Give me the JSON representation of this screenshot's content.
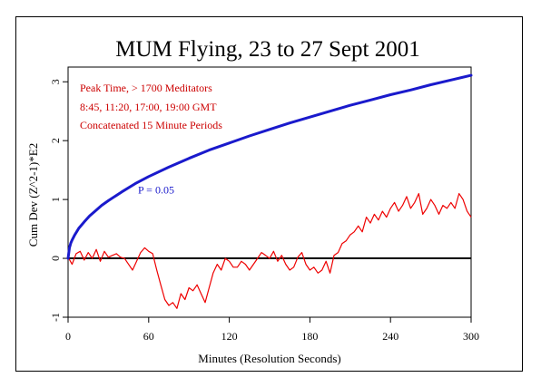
{
  "chart_data": {
    "type": "line",
    "title": "MUM Flying, 23 to 27 Sept 2001",
    "xlabel": "Minutes (Resolution Seconds)",
    "ylabel": "Cum Dev (Z^2-1)*E2",
    "xlim": [
      0,
      300
    ],
    "ylim": [
      -1,
      3.25
    ],
    "x_ticks": [
      0,
      60,
      120,
      180,
      240,
      300
    ],
    "y_ticks": [
      -1,
      0,
      1,
      2,
      3
    ],
    "grid": false,
    "annotations": [
      "Peak Time, > 1700 Meditators",
      "8:45, 11:20, 17:00, 19:00 GMT",
      "Concatenated 15 Minute Periods"
    ],
    "p_label": "P = 0.05",
    "p_label_position": [
      52,
      1.1
    ],
    "series": [
      {
        "role": "cumulative-deviation",
        "color": "#ee0000",
        "x": [
          0,
          3,
          6,
          9,
          12,
          15,
          18,
          21,
          24,
          27,
          30,
          33,
          36,
          39,
          42,
          45,
          48,
          51,
          54,
          57,
          60,
          63,
          66,
          69,
          72,
          75,
          78,
          81,
          84,
          87,
          90,
          93,
          96,
          99,
          102,
          105,
          108,
          111,
          114,
          117,
          120,
          123,
          126,
          129,
          132,
          135,
          138,
          141,
          144,
          147,
          150,
          153,
          156,
          159,
          162,
          165,
          168,
          171,
          174,
          177,
          180,
          183,
          186,
          189,
          192,
          195,
          198,
          201,
          204,
          207,
          210,
          213,
          216,
          219,
          222,
          225,
          228,
          231,
          234,
          237,
          240,
          243,
          246,
          249,
          252,
          255,
          258,
          261,
          264,
          267,
          270,
          273,
          276,
          279,
          282,
          285,
          288,
          291,
          294,
          297,
          300
        ],
        "y": [
          0.02,
          -0.1,
          0.08,
          0.12,
          -0.03,
          0.1,
          0.0,
          0.15,
          -0.05,
          0.12,
          0.02,
          0.05,
          0.08,
          0.02,
          0.0,
          -0.1,
          -0.2,
          -0.05,
          0.1,
          0.18,
          0.12,
          0.08,
          -0.2,
          -0.45,
          -0.7,
          -0.8,
          -0.75,
          -0.85,
          -0.6,
          -0.7,
          -0.5,
          -0.55,
          -0.45,
          -0.6,
          -0.75,
          -0.5,
          -0.25,
          -0.1,
          -0.2,
          0.0,
          -0.05,
          -0.15,
          -0.15,
          -0.05,
          -0.1,
          -0.2,
          -0.1,
          0.0,
          0.1,
          0.05,
          0.0,
          0.12,
          -0.05,
          0.05,
          -0.1,
          -0.2,
          -0.15,
          0.02,
          0.1,
          -0.1,
          -0.2,
          -0.15,
          -0.25,
          -0.2,
          -0.05,
          -0.25,
          0.05,
          0.1,
          0.25,
          0.3,
          0.4,
          0.45,
          0.55,
          0.45,
          0.7,
          0.6,
          0.75,
          0.65,
          0.8,
          0.7,
          0.85,
          0.95,
          0.8,
          0.9,
          1.05,
          0.85,
          0.95,
          1.1,
          0.75,
          0.85,
          1.0,
          0.9,
          0.75,
          0.9,
          0.85,
          0.95,
          0.85,
          1.1,
          1.0,
          0.8,
          0.7
        ]
      },
      {
        "role": "p-0.05-envelope",
        "color": "#1a1acc",
        "x": [
          0,
          1,
          2,
          3,
          5,
          8,
          12,
          16,
          20,
          25,
          30,
          40,
          50,
          60,
          75,
          90,
          105,
          120,
          135,
          150,
          165,
          180,
          195,
          210,
          225,
          240,
          255,
          270,
          285,
          300
        ],
        "y": [
          0,
          0.18,
          0.26,
          0.31,
          0.4,
          0.51,
          0.62,
          0.72,
          0.8,
          0.9,
          0.98,
          1.13,
          1.27,
          1.39,
          1.55,
          1.7,
          1.84,
          1.96,
          2.08,
          2.19,
          2.3,
          2.4,
          2.5,
          2.6,
          2.69,
          2.78,
          2.86,
          2.95,
          3.03,
          3.11
        ]
      }
    ]
  }
}
